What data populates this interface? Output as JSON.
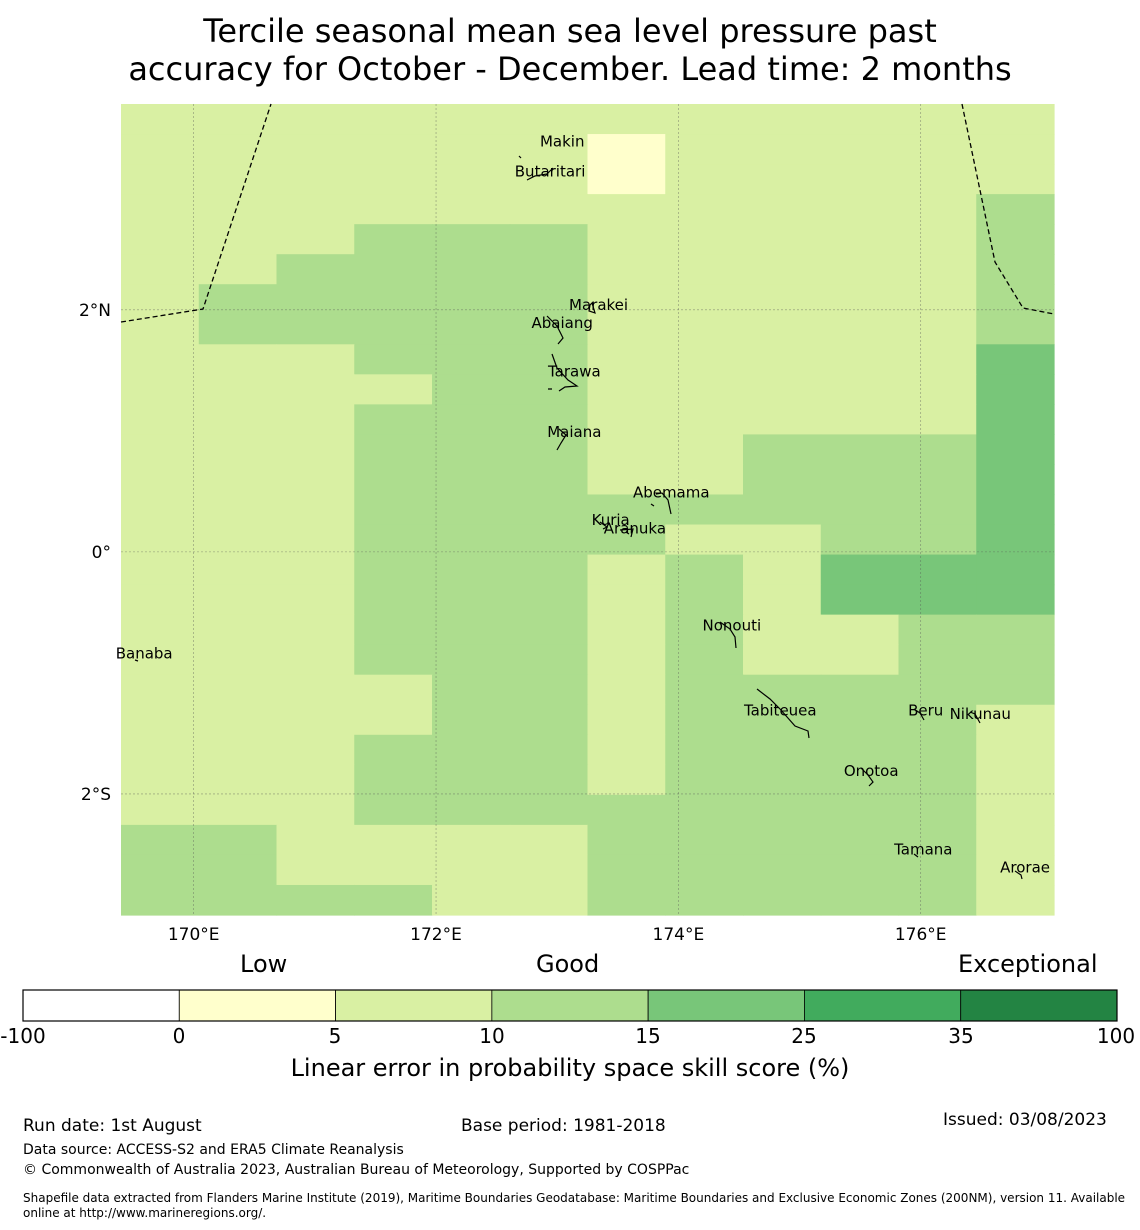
{
  "title_line1": "Tercile seasonal mean sea level pressure past",
  "title_line2": "accuracy for October - December. Lead time: 2 months",
  "map": {
    "lon_range": [
      169.4,
      177.1
    ],
    "lat_range": [
      -3.0,
      3.7
    ],
    "lon_ticks": [
      {
        "v": 170,
        "label": "170°E"
      },
      {
        "v": 172,
        "label": "172°E"
      },
      {
        "v": 174,
        "label": "174°E"
      },
      {
        "v": 176,
        "label": "176°E"
      }
    ],
    "lat_ticks": [
      {
        "v": 2,
        "label": "2°N"
      },
      {
        "v": 0,
        "label": "0°"
      },
      {
        "v": -2,
        "label": "2°S"
      }
    ],
    "grid": true,
    "cell_colors": {
      "1": "#ffffcc",
      "2": "#d9f0a3",
      "3": "#addd8e",
      "4": "#78c679"
    },
    "cell_rows_note": "rows north-to-south, columns west-to-east; values are colour classes",
    "cells": [
      "222222222222",
      "222222122222",
      "222222122222",
      "222222222223",
      "222333222223",
      "223333222223",
      "233333222223",
      "233333222223",
      "222333222224",
      "222233222224",
      "222333222224",
      "222333223334",
      "222333223334",
      "222333333334",
      "222333322334",
      "222333232444",
      "222333232444",
      "222333232233",
      "222333232233",
      "222233233333",
      "222233233332",
      "222333233332",
      "222333233332",
      "222333333332",
      "332222333332",
      "332222333332",
      "333322333332"
    ],
    "islands": [
      {
        "name": "Makin",
        "lon": 173.0,
        "lat": 3.35
      },
      {
        "name": "Butaritari",
        "lon": 172.9,
        "lat": 3.1
      },
      {
        "name": "Marakei",
        "lon": 173.3,
        "lat": 2.0
      },
      {
        "name": "Abaiang",
        "lon": 173.0,
        "lat": 1.85
      },
      {
        "name": "Tarawa",
        "lon": 173.1,
        "lat": 1.45
      },
      {
        "name": "Maiana",
        "lon": 173.1,
        "lat": 0.95
      },
      {
        "name": "Abemama",
        "lon": 173.9,
        "lat": 0.45
      },
      {
        "name": "Kuria",
        "lon": 173.4,
        "lat": 0.22
      },
      {
        "name": "Aranuka",
        "lon": 173.6,
        "lat": 0.15
      },
      {
        "name": "Nonouti",
        "lon": 174.4,
        "lat": -0.65
      },
      {
        "name": "Banaba",
        "lon": 169.55,
        "lat": -0.88
      },
      {
        "name": "Tabiteuea",
        "lon": 174.8,
        "lat": -1.35
      },
      {
        "name": "Beru",
        "lon": 176.0,
        "lat": -1.35
      },
      {
        "name": "Nikunau",
        "lon": 176.45,
        "lat": -1.38
      },
      {
        "name": "Onotoa",
        "lon": 175.55,
        "lat": -1.85
      },
      {
        "name": "Tamana",
        "lon": 175.98,
        "lat": -2.5
      },
      {
        "name": "Arorae",
        "lon": 176.82,
        "lat": -2.65
      }
    ]
  },
  "colorbar": {
    "categories": [
      "Low",
      "Good",
      "Exceptional"
    ],
    "ticks": [
      "-100",
      "0",
      "5",
      "10",
      "15",
      "25",
      "35",
      "100"
    ],
    "colors": [
      "#ffffff",
      "#ffffcc",
      "#d9f0a3",
      "#addd8e",
      "#78c679",
      "#41ab5d",
      "#238443"
    ],
    "label": "Linear error in probability space skill score (%)"
  },
  "footer": {
    "run_date": "Run date: 1st August",
    "base_period": "Base period: 1981-2018",
    "issued": "Issued: 03/08/2023",
    "data_source": "Data source: ACCESS-S2 and ERA5 Climate Reanalysis",
    "copyright": "© Commonwealth of Australia 2023, Australian Bureau of Meteorology, Supported by COSPPac",
    "shapefile_line1": "Shapefile data extracted from Flanders Marine Institute (2019), Maritime Boundaries Geodatabase: Maritime Boundaries and Exclusive Economic Zones (200NM), version 11. Available",
    "shapefile_line2": "online at http://www.marineregions.org/."
  }
}
